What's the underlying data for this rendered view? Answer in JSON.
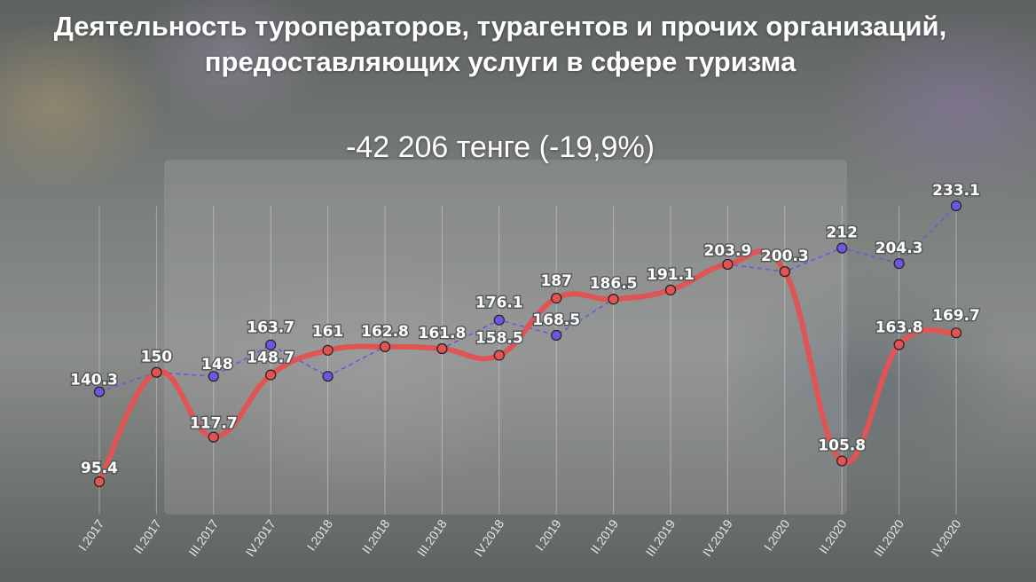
{
  "chart_data": {
    "type": "line",
    "title": "Деятельность туроператоров, турагентов и прочих организаций, предоставляющих услуги в сфере туризма",
    "subtitle": "-42 206 тенге (-19,9%)",
    "categories": [
      "I.2017",
      "II.2017",
      "III.2017",
      "IV.2017",
      "I.2018",
      "II.2018",
      "III.2018",
      "IV.2018",
      "I.2019",
      "II.2019",
      "III.2019",
      "IV.2019",
      "I.2020",
      "II.2020",
      "III.2020",
      "IV.2020"
    ],
    "series": [
      {
        "values": [
          95.4,
          150,
          117.7,
          148.7,
          161,
          162.8,
          161.8,
          158.5,
          187,
          186.5,
          191.1,
          203.9,
          200.3,
          105.8,
          163.8,
          169.7
        ],
        "labels": [
          "95.4",
          "",
          "117.7",
          "148.7",
          "161",
          "",
          "",
          "158.5",
          "187",
          "",
          "",
          "",
          "",
          "105.8",
          "163.8",
          "169.7"
        ],
        "color": "#e05454",
        "style": "solid-smooth"
      },
      {
        "values": [
          140.3,
          150,
          148,
          163.7,
          148,
          162.8,
          161.8,
          176.1,
          168.5,
          186.5,
          191.1,
          203.9,
          200.3,
          212,
          204.3,
          233.1
        ],
        "labels": [
          "140.3",
          "150",
          "148",
          "163.7",
          "",
          "162.8",
          "161.8",
          "176.1",
          "168.5",
          "186.5",
          "191.1",
          "203.9",
          "200.3",
          "212",
          "204.3",
          "233.1"
        ],
        "color": "#6b57e0",
        "style": "dashed"
      }
    ],
    "grid": "vertical"
  }
}
